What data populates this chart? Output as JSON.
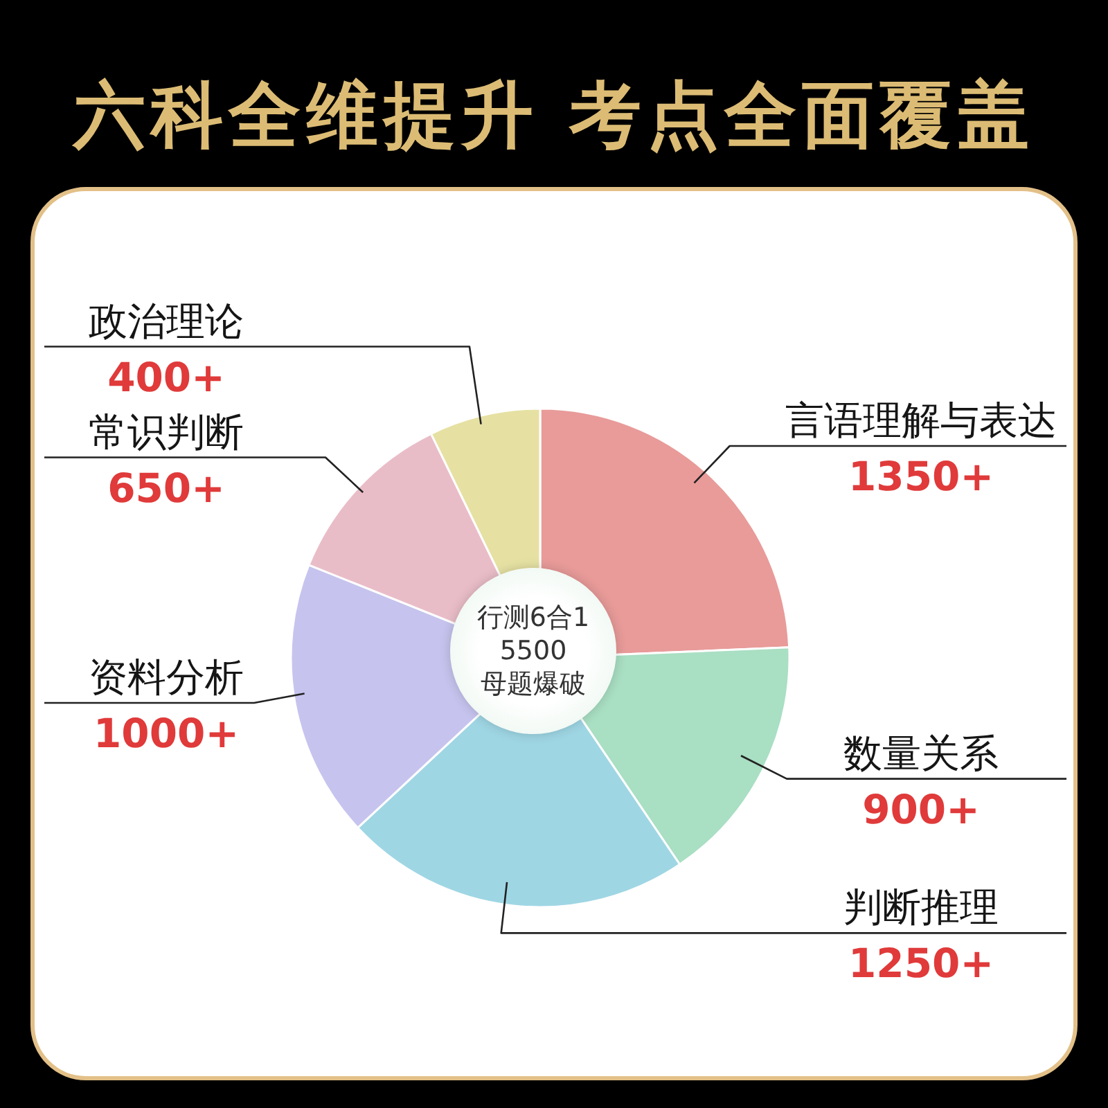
{
  "chart_data": {
    "type": "pie",
    "title": "六科全维提升 考点全面覆盖",
    "categories": [
      "言语理解与表达",
      "数量关系",
      "判断推理",
      "资料分析",
      "常识判断",
      "政治理论"
    ],
    "values": [
      1350,
      900,
      1250,
      1000,
      650,
      400
    ],
    "value_labels": [
      "1350+",
      "900+",
      "1250+",
      "1000+",
      "650+",
      "400+"
    ],
    "colors": [
      "#e89b99",
      "#a9dfc3",
      "#9fd6e4",
      "#c6c4ee",
      "#e9bdc8",
      "#e6e1a3"
    ],
    "annotations": [
      "行测6合1",
      "5500",
      "母题爆破"
    ]
  }
}
